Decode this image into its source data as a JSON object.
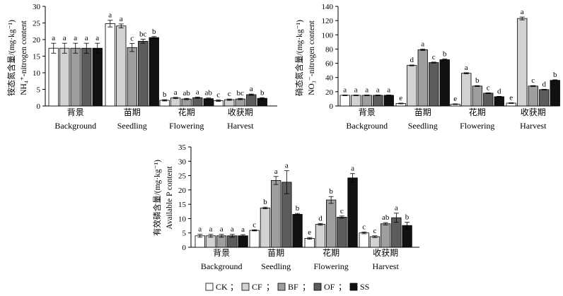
{
  "chart_data": [
    {
      "type": "bar",
      "id": "nh4",
      "ylabel_cn": "铵态氮含量/(mg·kg⁻¹)",
      "ylabel_en": "NH₄⁺-nitrogen content",
      "ylim": [
        0,
        30
      ],
      "yticks": [
        "0",
        "5",
        "10",
        "15",
        "20",
        "25",
        "30"
      ],
      "categories": [
        {
          "cn": "背景",
          "en": "Background"
        },
        {
          "cn": "苗期",
          "en": "Seedling"
        },
        {
          "cn": "花期",
          "en": "Flowering"
        },
        {
          "cn": "收获期",
          "en": "Harvest"
        }
      ],
      "series": [
        {
          "name": "CK",
          "color": "#ffffff",
          "values": [
            17.4,
            24.8,
            1.7,
            1.6
          ],
          "errors": [
            1.5,
            1.0,
            0.2,
            0.2
          ],
          "labels": [
            "a",
            "a",
            "b",
            "c"
          ]
        },
        {
          "name": "CF",
          "color": "#d2d2d2",
          "values": [
            17.4,
            24.1,
            2.4,
            1.9
          ],
          "errors": [
            1.5,
            0.6,
            0.2,
            0.2
          ],
          "labels": [
            "a",
            "a",
            "a",
            "c"
          ]
        },
        {
          "name": "BF",
          "color": "#9e9e9e",
          "values": [
            17.4,
            17.6,
            2.1,
            2.1
          ],
          "errors": [
            1.5,
            1.2,
            0.2,
            0.2
          ],
          "labels": [
            "a",
            "c",
            "ab",
            "bc"
          ]
        },
        {
          "name": "OF",
          "color": "#5c5c5c",
          "values": [
            17.4,
            19.5,
            2.5,
            3.4
          ],
          "errors": [
            1.5,
            0.6,
            0.2,
            0.2
          ],
          "labels": [
            "a",
            "bc",
            "a",
            "a"
          ]
        },
        {
          "name": "SS",
          "color": "#111111",
          "values": [
            17.4,
            20.6,
            2.2,
            2.3
          ],
          "errors": [
            1.5,
            0.3,
            0.2,
            0.2
          ],
          "labels": [
            "a",
            "b",
            "ab",
            "b"
          ]
        }
      ]
    },
    {
      "type": "bar",
      "id": "no3",
      "ylabel_cn": "硝态氮含量/(mg·kg⁻¹)",
      "ylabel_en": "NO₃⁻-nitrogen content",
      "ylim": [
        0,
        140
      ],
      "yticks": [
        "0",
        "20",
        "40",
        "60",
        "80",
        "100",
        "120",
        "140"
      ],
      "categories": [
        {
          "cn": "背景",
          "en": "Background"
        },
        {
          "cn": "苗期",
          "en": "Seedling"
        },
        {
          "cn": "花期",
          "en": "Flowering"
        },
        {
          "cn": "收获期",
          "en": "Harvest"
        }
      ],
      "series": [
        {
          "name": "CK",
          "color": "#ffffff",
          "values": [
            15,
            3.5,
            2.5,
            4
          ],
          "errors": [
            0.5,
            0.5,
            0.5,
            0.5
          ],
          "labels": [
            "a",
            "e",
            "e",
            "e"
          ]
        },
        {
          "name": "CF",
          "color": "#d2d2d2",
          "values": [
            15,
            57,
            46,
            123
          ],
          "errors": [
            0.5,
            0.6,
            0.8,
            2
          ],
          "labels": [
            "a",
            "d",
            "a",
            "a"
          ]
        },
        {
          "name": "BF",
          "color": "#9e9e9e",
          "values": [
            15,
            79,
            28,
            28
          ],
          "errors": [
            0.5,
            1.0,
            0.6,
            0.6
          ],
          "labels": [
            "a",
            "a",
            "b",
            "c"
          ]
        },
        {
          "name": "OF",
          "color": "#5c5c5c",
          "values": [
            15,
            61,
            18,
            23
          ],
          "errors": [
            0.5,
            0.7,
            0.5,
            0.5
          ],
          "labels": [
            "a",
            "c",
            "c",
            "d"
          ]
        },
        {
          "name": "SS",
          "color": "#111111",
          "values": [
            15,
            65,
            13,
            36
          ],
          "errors": [
            0.5,
            1.0,
            0.5,
            0.8
          ],
          "labels": [
            "a",
            "b",
            "d",
            "b"
          ]
        }
      ]
    },
    {
      "type": "bar",
      "id": "ap",
      "ylabel_cn": "有效磷含量/(mg·kg⁻¹)",
      "ylabel_en": "Available P content",
      "ylim": [
        0,
        35
      ],
      "yticks": [
        "0",
        "5",
        "10",
        "15",
        "20",
        "25",
        "30",
        "35"
      ],
      "categories": [
        {
          "cn": "背景",
          "en": "Background"
        },
        {
          "cn": "苗期",
          "en": "Seedling"
        },
        {
          "cn": "花期",
          "en": "Flowering"
        },
        {
          "cn": "收获期",
          "en": "Harvest"
        }
      ],
      "series": [
        {
          "name": "CK",
          "color": "#ffffff",
          "values": [
            4.0,
            5.9,
            3.1,
            5.0
          ],
          "errors": [
            0.5,
            0.2,
            0.3,
            0.3
          ],
          "labels": [
            "a",
            "c",
            "e",
            "c"
          ]
        },
        {
          "name": "CF",
          "color": "#d2d2d2",
          "values": [
            4.0,
            13.7,
            8.0,
            3.7
          ],
          "errors": [
            0.5,
            0.3,
            0.3,
            0.3
          ],
          "labels": [
            "a",
            "b",
            "d",
            "c"
          ]
        },
        {
          "name": "BF",
          "color": "#9e9e9e",
          "values": [
            4.0,
            23.3,
            16.5,
            8.2
          ],
          "errors": [
            0.5,
            1.4,
            1.2,
            0.4
          ],
          "labels": [
            "a",
            "a",
            "b",
            "ab"
          ]
        },
        {
          "name": "OF",
          "color": "#5c5c5c",
          "values": [
            4.0,
            22.7,
            10.5,
            10.3
          ],
          "errors": [
            0.5,
            4.0,
            0.4,
            1.6
          ],
          "labels": [
            "a",
            "a",
            "c",
            "a"
          ]
        },
        {
          "name": "SS",
          "color": "#111111",
          "values": [
            4.0,
            11.5,
            24.2,
            7.6
          ],
          "errors": [
            0.4,
            0.3,
            1.5,
            1.1
          ],
          "labels": [
            "a",
            "b",
            "a",
            "b"
          ]
        }
      ]
    }
  ],
  "legend": [
    {
      "name": "CK",
      "color": "#ffffff"
    },
    {
      "name": "CF",
      "color": "#d2d2d2"
    },
    {
      "name": "BF",
      "color": "#9e9e9e"
    },
    {
      "name": "OF",
      "color": "#5c5c5c"
    },
    {
      "name": "SS",
      "color": "#111111"
    }
  ]
}
